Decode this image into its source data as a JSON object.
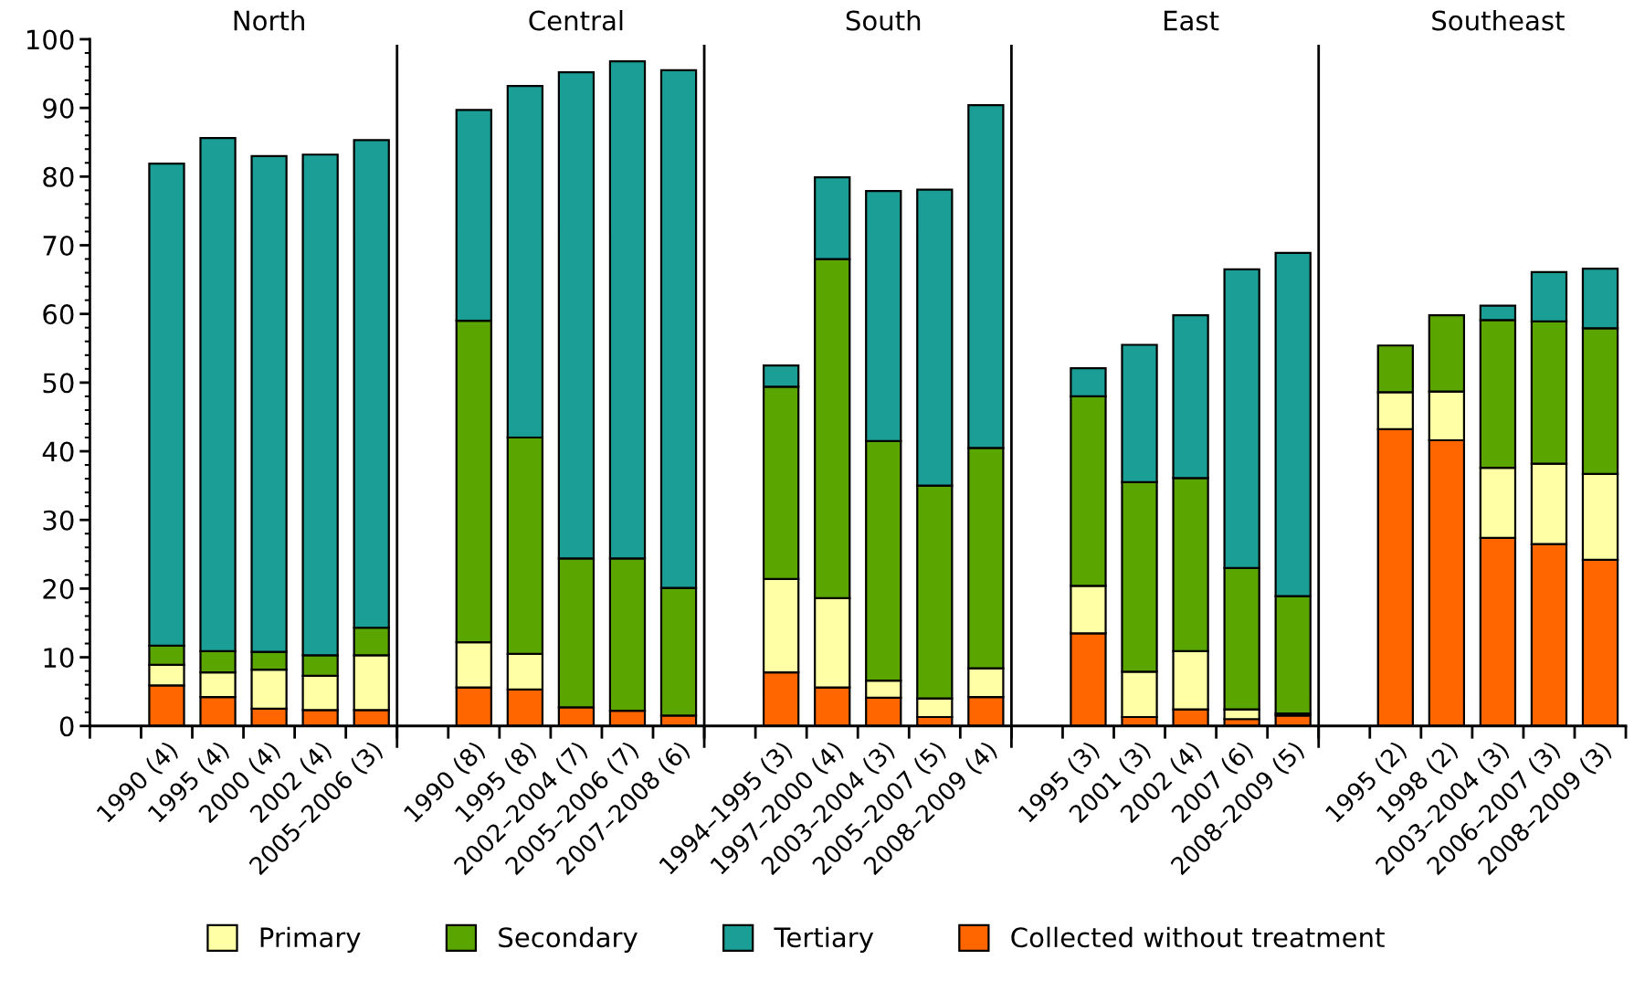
{
  "chart_data": {
    "type": "bar",
    "stacked": true,
    "categories": [
      null,
      "1990 (4)",
      "1995 (4)",
      "2000 (4)",
      "2002 (4)",
      "2005–2006 (3)",
      null,
      "1990 (8)",
      "1995 (8)",
      "2002–2004 (7)",
      "2005–2006 (7)",
      "2007–2008 (6)",
      null,
      "1994–1995 (3)",
      "1997–2000 (4)",
      "2003–2004 (3)",
      "2005–2007 (5)",
      "2008–2009 (4)",
      null,
      "1995 (3)",
      "2001 (3)",
      "2002 (4)",
      "2007 (6)",
      "2008–2009 (5)",
      null,
      "1995 (2)",
      "1998 (2)",
      "2003–2004 (3)",
      "2006–2007 (3)",
      "2008–2009 (3)"
    ],
    "series": [
      {
        "name": "Collected without treatment",
        "color": "#ff6600",
        "values": [
          null,
          5.9,
          4.2,
          2.5,
          2.3,
          2.3,
          null,
          5.6,
          5.3,
          2.7,
          2.2,
          1.5,
          null,
          7.8,
          5.6,
          4.1,
          1.3,
          4.2,
          null,
          13.5,
          1.3,
          2.4,
          1.0,
          1.5,
          null,
          43.2,
          41.6,
          27.4,
          26.5,
          24.2
        ]
      },
      {
        "name": "Primary",
        "color": "#ffffa6",
        "values": [
          null,
          3.0,
          3.6,
          5.7,
          5.0,
          8.0,
          null,
          6.6,
          5.2,
          null,
          null,
          null,
          null,
          13.6,
          13.0,
          2.5,
          2.7,
          4.2,
          null,
          6.9,
          6.6,
          8.5,
          1.4,
          0.3,
          null,
          5.4,
          7.1,
          10.2,
          11.7,
          12.5
        ]
      },
      {
        "name": "Secondary",
        "color": "#5aa500",
        "values": [
          null,
          2.8,
          3.1,
          2.6,
          3.0,
          4.0,
          null,
          46.8,
          31.5,
          21.7,
          22.2,
          18.6,
          null,
          28.0,
          49.4,
          34.9,
          31.0,
          32.1,
          null,
          27.6,
          27.6,
          25.2,
          20.6,
          17.1,
          null,
          6.8,
          11.1,
          21.5,
          20.7,
          21.2
        ]
      },
      {
        "name": "Tertiary",
        "color": "#1a9e96",
        "values": [
          null,
          70.2,
          74.7,
          72.2,
          72.9,
          71.0,
          null,
          30.7,
          51.2,
          70.8,
          72.4,
          75.4,
          null,
          3.1,
          11.9,
          36.4,
          43.1,
          49.9,
          null,
          4.1,
          20.0,
          23.7,
          43.5,
          50.0,
          null,
          null,
          null,
          2.1,
          7.2,
          8.7
        ]
      }
    ],
    "annotations": [
      "North",
      "Central",
      "South",
      "East",
      "Southeast"
    ],
    "ylim": [
      0,
      100
    ],
    "yticks": [
      0,
      10,
      20,
      30,
      40,
      50,
      60,
      70,
      80,
      90,
      100
    ],
    "grid": false,
    "legend": "bottom"
  }
}
